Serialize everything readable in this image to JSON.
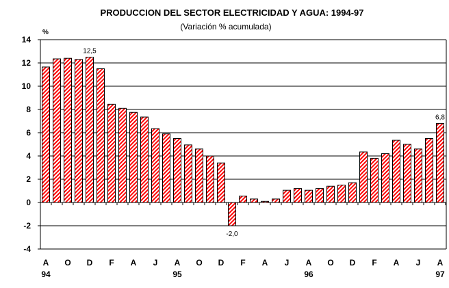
{
  "chart_data": {
    "type": "bar",
    "title": "PRODUCCION DEL SECTOR ELECTRICIDAD Y AGUA: 1994-97",
    "subtitle": "(Variación % acumulada)",
    "ylabel": "%",
    "xlabel": "",
    "ylim": [
      -4,
      14
    ],
    "yticks": [
      -4,
      -2,
      0,
      2,
      4,
      6,
      8,
      10,
      12,
      14
    ],
    "grid": true,
    "bar_color": "#ff0000",
    "x_tick_labels": [
      "A",
      "O",
      "D",
      "F",
      "A",
      "J",
      "A",
      "O",
      "D",
      "F",
      "A",
      "J",
      "A",
      "O",
      "D",
      "F",
      "A",
      "J",
      "A"
    ],
    "year_labels": [
      {
        "index": 0,
        "label": "94"
      },
      {
        "index": 12,
        "label": "95"
      },
      {
        "index": 24,
        "label": "96"
      },
      {
        "index": 36,
        "label": "97"
      }
    ],
    "values": [
      11.65,
      12.35,
      12.4,
      12.3,
      12.5,
      11.5,
      8.45,
      8.1,
      7.75,
      7.35,
      6.35,
      5.9,
      5.5,
      4.95,
      4.6,
      4.0,
      3.4,
      -2.0,
      0.55,
      0.3,
      0.1,
      0.3,
      1.05,
      1.2,
      1.05,
      1.2,
      1.4,
      1.5,
      1.7,
      4.35,
      3.8,
      4.2,
      5.35,
      5.0,
      4.6,
      5.5,
      6.8
    ],
    "data_labels": [
      {
        "index": 4,
        "label": "12,5"
      },
      {
        "index": 17,
        "label": "-2,0"
      },
      {
        "index": 36,
        "label": "6,8"
      }
    ]
  }
}
